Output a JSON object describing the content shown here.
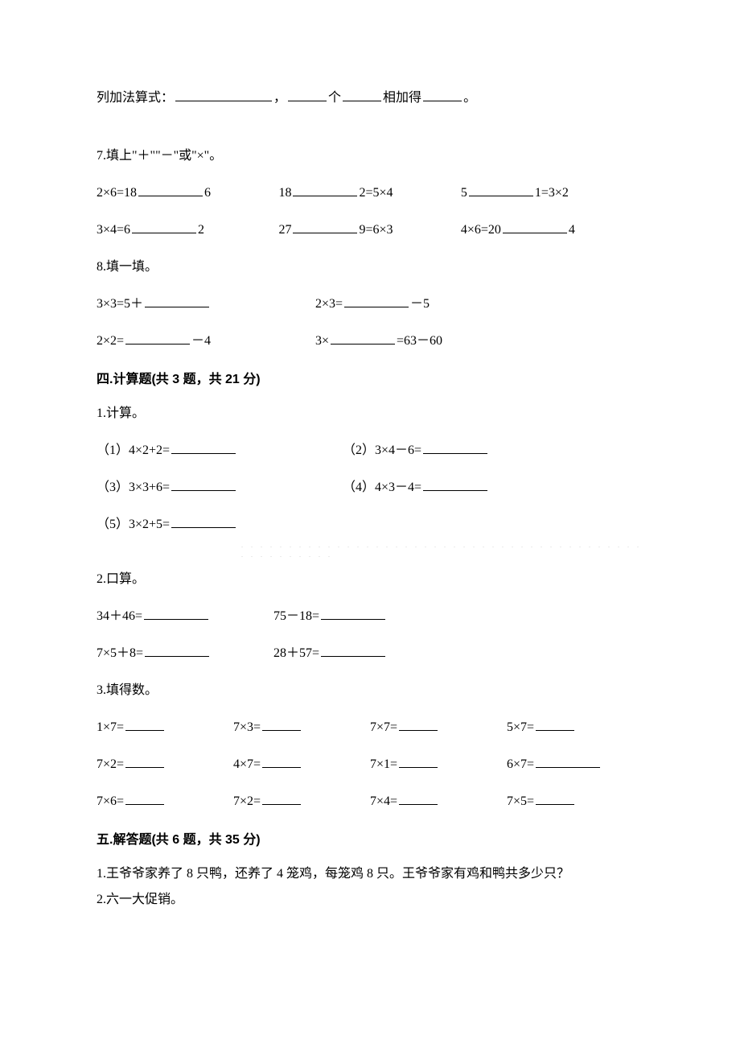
{
  "colors": {
    "text": "#000000",
    "background": "#ffffff",
    "underline": "#000000",
    "dots": "#cccccc"
  },
  "typography": {
    "body_family": "SimSun",
    "heading_family": "SimHei",
    "body_size_pt": 12,
    "heading_weight": "bold"
  },
  "q_addition": {
    "prefix": "列加法算式：",
    "sep": "，",
    "mid1": "个",
    "mid2": "相加得",
    "end": "。"
  },
  "q7": {
    "title": "7.填上\"＋\"\"－\"或\"×\"。",
    "row1": {
      "a": "2×6=18",
      "a_tail": "6",
      "b": "18",
      "b_tail": "2=5×4",
      "c": "5",
      "c_tail": "1=3×2"
    },
    "row2": {
      "a": "3×4=6",
      "a_tail": "2",
      "b": "27",
      "b_tail": "9=6×3",
      "c": "4×6=20",
      "c_tail": "4"
    }
  },
  "q8": {
    "title": "8.填一填。",
    "row1": {
      "a_pre": "3×3=5＋",
      "b_pre": "2×3=",
      "b_post": "－5"
    },
    "row2": {
      "a_pre": "2×2=",
      "a_post": "－4",
      "b_pre": "3×",
      "b_post": "=63－60"
    }
  },
  "section4": {
    "heading": "四.计算题(共 3 题，共 21 分)",
    "p1": {
      "title": "1.计算。",
      "items": [
        "（1）4×2+2=",
        "（2）3×4－6=",
        "（3）3×3+6=",
        "（4）4×3－4=",
        "（5）3×2+5="
      ]
    },
    "p2": {
      "title": "2.口算。",
      "row1": {
        "a": "34＋46=",
        "b": "75－18="
      },
      "row2": {
        "a": "7×5＋8=",
        "b": "28＋57="
      }
    },
    "p3": {
      "title": "3.填得数。",
      "rows": [
        [
          "1×7=",
          "7×3=",
          "7×7=",
          "5×7="
        ],
        [
          "7×2=",
          "4×7=",
          "7×1=",
          "6×7="
        ],
        [
          "7×6=",
          "7×2=",
          "7×4=",
          "7×5="
        ]
      ]
    }
  },
  "section5": {
    "heading": "五.解答题(共 6 题，共 35 分)",
    "q1": "1.王爷爷家养了 8 只鸭，还养了 4 笼鸡，每笼鸡 8 只。王爷爷家有鸡和鸭共多少只？",
    "q2": "2.六一大促销。"
  }
}
